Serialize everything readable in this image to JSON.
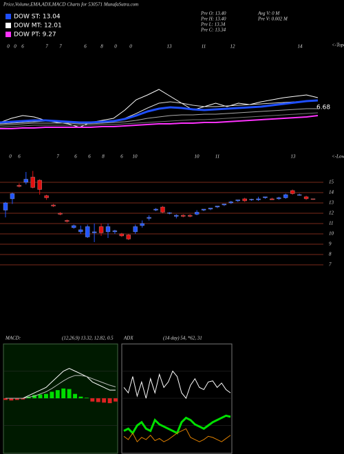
{
  "header": {
    "title": "Price,Volume,EMA,ADX,MACD Charts for 530571 MunafaSutra.com"
  },
  "legend": [
    {
      "label": "DOW ST: 13.04",
      "color": "#1f4fff"
    },
    {
      "label": "DOW MT: 12.01",
      "color": "#ffffff"
    },
    {
      "label": "DOW PT: 9.27",
      "color": "#ff33ff"
    }
  ],
  "info": [
    "Pre  O: 13.40",
    "Pre  H: 13.40",
    "Pre  L: 13.34",
    "Pre  C: 13.34",
    "Avg V: 0  M",
    "Pre  V: 0.002  M"
  ],
  "chart_data": [
    {
      "type": "line",
      "top_labels": [
        "0",
        "0",
        "6",
        "7",
        "7",
        "6",
        "8",
        "0",
        "0",
        "13",
        "11",
        "12",
        "14"
      ],
      "side_label": "<-Topo",
      "value_label": "6.68",
      "ylim": [
        0,
        130
      ],
      "series": [
        {
          "color": "#ffffff",
          "width": 1,
          "values": [
            12,
            18,
            22,
            20,
            15,
            12,
            10,
            5,
            12,
            15,
            18,
            30,
            45,
            52,
            60,
            50,
            40,
            30,
            35,
            40,
            35,
            40,
            38,
            42,
            45,
            48,
            50,
            52,
            48
          ]
        },
        {
          "color": "#dddddd",
          "width": 1,
          "values": [
            10,
            11,
            12,
            13,
            14,
            14,
            13,
            12,
            12,
            13,
            14,
            18,
            25,
            33,
            40,
            42,
            40,
            37,
            35,
            35,
            36,
            37,
            38,
            39,
            40,
            41,
            42,
            43,
            43
          ]
        },
        {
          "color": "#1f4fff",
          "width": 3,
          "values": [
            12,
            13,
            14,
            15,
            15,
            14,
            13,
            12,
            12,
            13,
            14,
            17,
            22,
            28,
            32,
            34,
            33,
            31,
            30,
            31,
            32,
            33,
            34,
            35,
            37,
            39,
            41,
            43,
            44
          ]
        },
        {
          "color": "#aaaaaa",
          "width": 1,
          "values": [
            8,
            9,
            10,
            11,
            11,
            11,
            11,
            10,
            10,
            11,
            12,
            13,
            15,
            18,
            20,
            22,
            23,
            23,
            24,
            24,
            25,
            26,
            27,
            28,
            29,
            30,
            31,
            32,
            32
          ]
        },
        {
          "color": "#777777",
          "width": 1,
          "values": [
            5,
            6,
            7,
            8,
            8,
            8,
            8,
            8,
            8,
            9,
            9,
            10,
            11,
            12,
            13,
            14,
            15,
            16,
            16,
            17,
            18,
            19,
            20,
            21,
            22,
            23,
            24,
            25,
            26
          ]
        },
        {
          "color": "#ff33ff",
          "width": 2,
          "values": [
            3,
            3,
            4,
            4,
            5,
            5,
            5,
            5,
            5,
            6,
            6,
            7,
            8,
            9,
            10,
            10,
            11,
            11,
            12,
            12,
            13,
            14,
            15,
            16,
            17,
            18,
            19,
            20,
            22
          ]
        }
      ]
    },
    {
      "type": "candlestick",
      "top_labels": [
        "0",
        "6",
        "7",
        "6",
        "6",
        "8",
        "6",
        "10",
        "10",
        "11",
        "13"
      ],
      "side_label": "<-Lowes",
      "ylim": [
        6.33,
        17
      ],
      "yticks": [
        15,
        14,
        13,
        12,
        11,
        10,
        9,
        8,
        7
      ],
      "grid": true,
      "grid_color": "#7a2a1a",
      "up_color": "#2255ff",
      "down_color": "#e01010",
      "open": [
        12.3,
        13.4,
        14.7,
        15.0,
        15.5,
        15.2,
        13.7,
        12.8,
        12.0,
        11.3,
        10.6,
        10.2,
        9.7,
        10.1,
        10.7,
        10.2,
        10.2,
        10.0,
        9.9,
        10.2,
        10.8,
        11.5,
        12.3,
        12.6,
        12.0,
        11.7,
        11.8,
        11.8,
        11.9,
        12.3,
        12.4,
        12.6,
        12.8,
        13.0,
        13.2,
        13.4,
        13.3,
        13.3,
        13.5,
        13.4,
        13.4,
        13.5,
        14.2,
        13.75,
        13.6,
        13.4
      ],
      "high": [
        13.1,
        14.0,
        14.9,
        16.0,
        16.1,
        15.3,
        13.8,
        12.9,
        12.1,
        11.4,
        10.9,
        10.8,
        10.9,
        11.0,
        11.0,
        11.0,
        10.4,
        10.1,
        10.0,
        10.9,
        11.3,
        11.8,
        12.5,
        12.7,
        12.1,
        11.9,
        11.9,
        11.9,
        12.3,
        12.4,
        12.5,
        12.7,
        12.9,
        13.2,
        13.3,
        13.5,
        13.4,
        13.6,
        13.6,
        13.5,
        13.6,
        13.9,
        14.3,
        13.9,
        13.7,
        13.4
      ],
      "low": [
        11.6,
        12.9,
        14.5,
        14.8,
        14.4,
        13.8,
        13.3,
        12.6,
        11.8,
        11.1,
        10.5,
        10.0,
        9.6,
        9.2,
        9.8,
        9.6,
        10.0,
        9.7,
        9.4,
        10.0,
        10.6,
        11.3,
        12.2,
        12.0,
        11.9,
        11.5,
        11.6,
        11.6,
        11.8,
        12.2,
        12.3,
        12.5,
        12.7,
        12.9,
        13.1,
        13.1,
        13.2,
        13.2,
        13.4,
        13.3,
        13.3,
        13.4,
        13.8,
        13.7,
        13.3,
        13.3
      ],
      "close": [
        13.0,
        13.9,
        14.6,
        15.3,
        14.5,
        14.3,
        13.5,
        12.7,
        11.9,
        11.2,
        10.8,
        10.4,
        10.7,
        10.2,
        10.1,
        10.7,
        10.3,
        9.8,
        9.5,
        10.7,
        11.0,
        11.6,
        12.4,
        12.1,
        12.05,
        11.8,
        11.7,
        11.7,
        12.1,
        12.4,
        12.5,
        12.7,
        12.9,
        13.1,
        13.3,
        13.2,
        13.35,
        13.4,
        13.6,
        13.3,
        13.5,
        13.8,
        13.9,
        13.8,
        13.4,
        13.34
      ]
    },
    {
      "type": "line",
      "title": "MACD:",
      "subtitle": "(12,26,9) 13.32, 12.82, 0.5",
      "ylim": [
        -10,
        10
      ],
      "series": [
        {
          "style": "bar",
          "color": "#00dd00",
          "negative_color": "#dd2222",
          "values": [
            -0.3,
            -0.4,
            -0.3,
            -0.2,
            0.3,
            0.6,
            0.7,
            0.8,
            1.2,
            1.5,
            1.8,
            1.7,
            0.8,
            0.3,
            0.1,
            -0.6,
            -0.7,
            -0.8,
            -0.9,
            -0.6
          ]
        },
        {
          "color": "#ffffff",
          "width": 1,
          "values": [
            0,
            0,
            0,
            0,
            0.5,
            1,
            1.5,
            2,
            3,
            4,
            5,
            5.5,
            5,
            4.5,
            4,
            3,
            2.5,
            2,
            1.5,
            1.5
          ]
        },
        {
          "color": "#bbbbbb",
          "width": 1,
          "values": [
            0,
            0,
            0,
            0,
            0.2,
            0.4,
            0.8,
            1.2,
            1.8,
            2.5,
            3.2,
            3.8,
            4.2,
            4.2,
            4,
            3.6,
            3.2,
            2.8,
            2.4,
            2.1
          ]
        }
      ]
    },
    {
      "type": "line",
      "title": "ADX",
      "subtitle": "(14 day) 54, *62, 31",
      "ylim": [
        0,
        100
      ],
      "series": [
        {
          "color": "#ffffff",
          "width": 1,
          "values": [
            60,
            55,
            70,
            52,
            65,
            50,
            68,
            55,
            72,
            60,
            65,
            75,
            70,
            55,
            50,
            62,
            68,
            60,
            58,
            65,
            66,
            60,
            64,
            58,
            55
          ]
        },
        {
          "color": "#00e000",
          "width": 3,
          "values": [
            20,
            22,
            18,
            25,
            28,
            22,
            20,
            30,
            26,
            24,
            22,
            20,
            18,
            28,
            32,
            30,
            26,
            24,
            22,
            25,
            28,
            30,
            32,
            34,
            33
          ]
        },
        {
          "color": "#e08000",
          "width": 1,
          "values": [
            15,
            12,
            18,
            10,
            14,
            12,
            16,
            11,
            13,
            10,
            12,
            15,
            18,
            20,
            22,
            14,
            12,
            10,
            12,
            15,
            14,
            12,
            10,
            13,
            16
          ]
        }
      ]
    }
  ]
}
